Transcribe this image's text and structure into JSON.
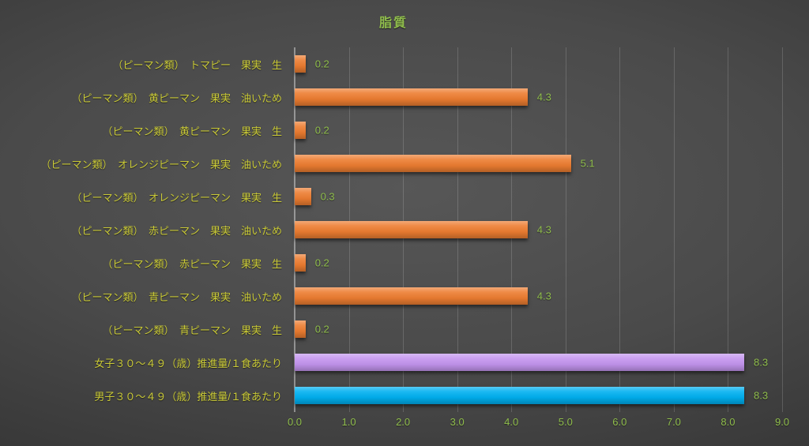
{
  "chart_data": {
    "type": "bar",
    "orientation": "horizontal",
    "title": "脂質",
    "categories": [
      "（ピーマン類）　トマピー　果実　生",
      "（ピーマン類）　黄ピーマン　果実　油いため",
      "（ピーマン類）　黄ピーマン　果実　生",
      "（ピーマン類）　オレンジピーマン　果実　油いため",
      "（ピーマン類）　オレンジピーマン　果実　生",
      "（ピーマン類）　赤ピーマン　果実　油いため",
      "（ピーマン類）　赤ピーマン　果実　生",
      "（ピーマン類）　青ピーマン　果実　油いため",
      "（ピーマン類）　青ピーマン　果実　生",
      "女子３０～４９（歳）推進量/１食あたり",
      "男子３０～４９（歳）推進量/１食あたり"
    ],
    "values": [
      0.2,
      4.3,
      0.2,
      5.1,
      0.3,
      4.3,
      0.2,
      4.3,
      0.2,
      8.3,
      8.3
    ],
    "value_labels": [
      "0.2",
      "4.3",
      "0.2",
      "5.1",
      "0.3",
      "4.3",
      "0.2",
      "4.3",
      "0.2",
      "8.3",
      "8.3"
    ],
    "bar_colors": [
      "orange",
      "orange",
      "orange",
      "orange",
      "orange",
      "orange",
      "orange",
      "orange",
      "orange",
      "purple",
      "blue"
    ],
    "xlim": [
      0,
      9
    ],
    "x_ticks": [
      "0.0",
      "1.0",
      "2.0",
      "3.0",
      "4.0",
      "5.0",
      "6.0",
      "7.0",
      "8.0",
      "9.0"
    ],
    "grid": true,
    "legend": "none"
  },
  "colors": {
    "background_center": "#575757",
    "background_edge": "#262626",
    "bar_orange": "#ED7D31",
    "bar_purple": "#C495EF",
    "bar_blue": "#00B0F0",
    "category_label": "#C9C936",
    "value_label": "#90BE4C",
    "axis_tick_label": "#90BE4C",
    "title": "#90BE4C",
    "gridline": "rgba(255,255,255,0.16)",
    "axis_line": "rgba(255,255,255,0.40)"
  }
}
